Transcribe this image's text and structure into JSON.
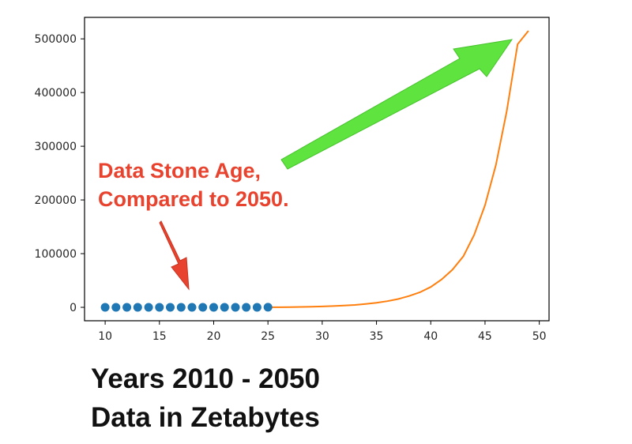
{
  "chart_data": {
    "type": "line",
    "title": "",
    "xlabel": "",
    "ylabel": "",
    "xlim": [
      8.1,
      50.9
    ],
    "ylim": [
      -25000,
      540000
    ],
    "xticks": [
      10,
      15,
      20,
      25,
      30,
      35,
      40,
      45,
      50
    ],
    "yticks": [
      0,
      100000,
      200000,
      300000,
      400000,
      500000
    ],
    "grid": false,
    "series": [
      {
        "kind": "scatter",
        "color": "#1f77b4",
        "x": [
          10,
          11,
          12,
          13,
          14,
          15,
          16,
          17,
          18,
          19,
          20,
          21,
          22,
          23,
          24,
          25
        ],
        "y": [
          2,
          2.6,
          3.4,
          4.4,
          5.7,
          7.4,
          9.6,
          12.5,
          16.2,
          21,
          27,
          35,
          46,
          60,
          78,
          100
        ]
      },
      {
        "kind": "line",
        "color": "#ff7f0e",
        "x": [
          25,
          26,
          27,
          28,
          29,
          30,
          31,
          32,
          33,
          34,
          35,
          36,
          37,
          38,
          39,
          40,
          41,
          42,
          43,
          44,
          45,
          46,
          47,
          48,
          49
        ],
        "y": [
          100,
          200,
          400,
          700,
          1100,
          1600,
          2300,
          3200,
          4500,
          6300,
          8500,
          11500,
          15500,
          21000,
          28000,
          38000,
          52000,
          70000,
          95000,
          135000,
          190000,
          265000,
          365000,
          490000,
          515000
        ]
      }
    ],
    "annotations": {
      "red_text": [
        "Data Stone Age,",
        "Compared to 2050."
      ],
      "red_arrow_color": "#e8432f",
      "green_arrow_color": "#5ee33f"
    }
  },
  "caption": {
    "line1": "Years 2010 - 2050",
    "line2": "Data in Zetabytes"
  }
}
